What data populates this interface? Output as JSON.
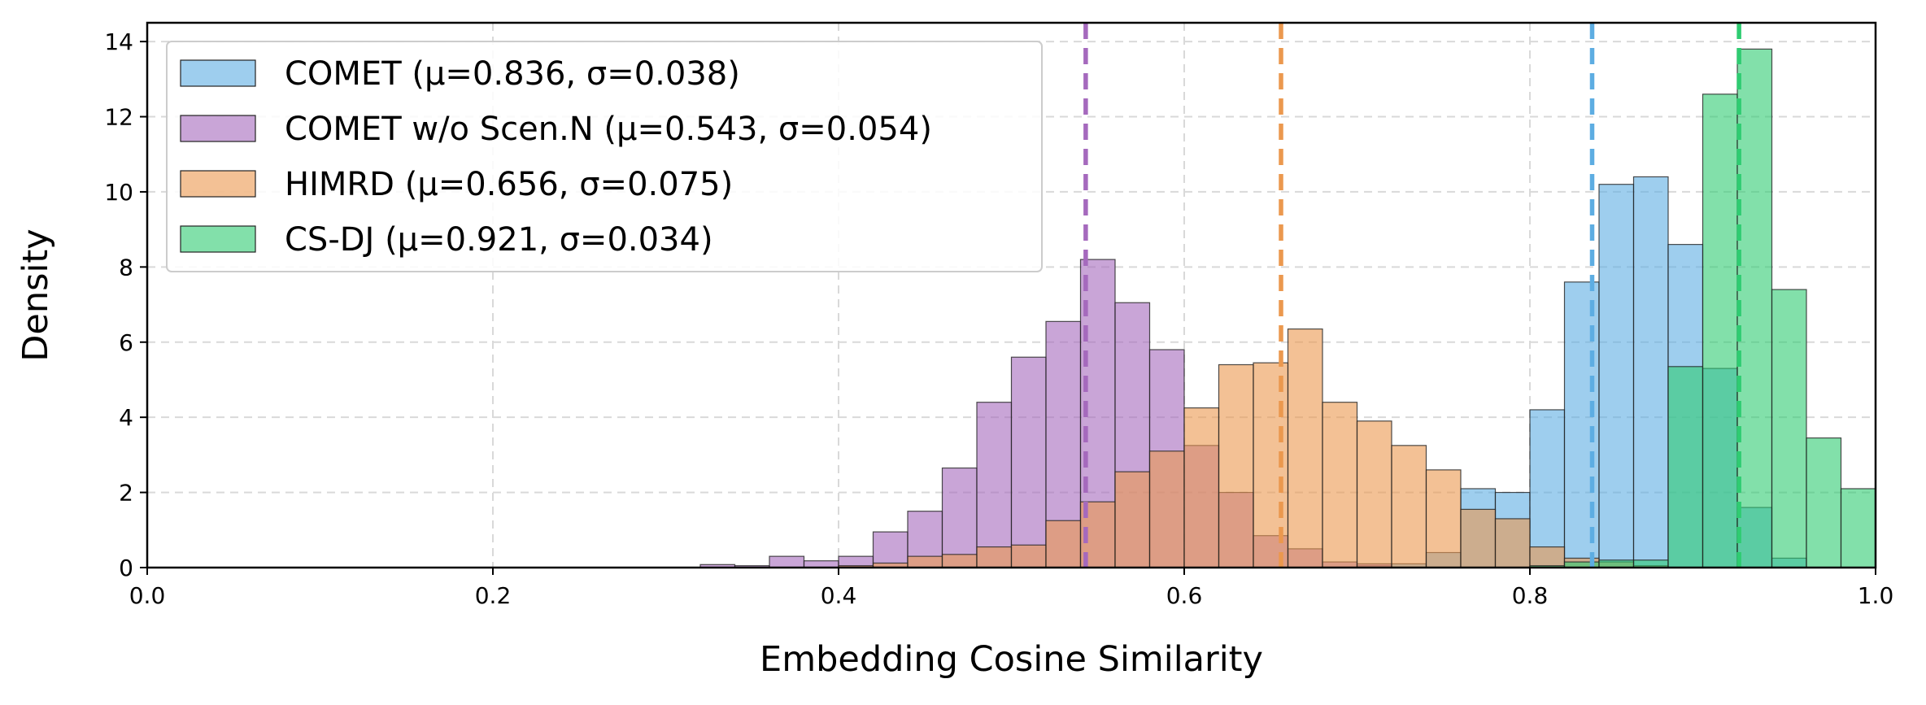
{
  "chart_data": {
    "type": "histogram",
    "xlabel": "Embedding Cosine Similarity",
    "ylabel": "Density",
    "xlim": [
      0.0,
      1.0
    ],
    "ylim": [
      0,
      14.5
    ],
    "x_ticks": [
      "0.0",
      "0.2",
      "0.4",
      "0.6",
      "0.8",
      "1.0"
    ],
    "y_ticks": [
      "0",
      "2",
      "4",
      "6",
      "8",
      "10",
      "12",
      "14"
    ],
    "grid": true,
    "legend_position": "top-left",
    "bin_width": 0.02,
    "series": [
      {
        "name": "COMET",
        "legend": "COMET (μ=0.836, σ=0.038)",
        "mean": 0.836,
        "color": "#5DADE2",
        "bins": [
          {
            "x": 0.7,
            "h": 0.05
          },
          {
            "x": 0.72,
            "h": 0.1
          },
          {
            "x": 0.74,
            "h": 0.4
          },
          {
            "x": 0.76,
            "h": 2.1
          },
          {
            "x": 0.78,
            "h": 2.0
          },
          {
            "x": 0.8,
            "h": 4.2
          },
          {
            "x": 0.82,
            "h": 7.6
          },
          {
            "x": 0.84,
            "h": 10.2
          },
          {
            "x": 0.86,
            "h": 10.4
          },
          {
            "x": 0.88,
            "h": 8.6
          },
          {
            "x": 0.9,
            "h": 5.3
          },
          {
            "x": 0.92,
            "h": 1.6
          },
          {
            "x": 0.94,
            "h": 0.25
          }
        ]
      },
      {
        "name": "COMET w/o Scen.N",
        "legend": "COMET w/o Scen.N (μ=0.543, σ=0.054)",
        "mean": 0.543,
        "color": "#A569BD",
        "bins": [
          {
            "x": 0.32,
            "h": 0.08
          },
          {
            "x": 0.34,
            "h": 0.05
          },
          {
            "x": 0.36,
            "h": 0.3
          },
          {
            "x": 0.38,
            "h": 0.18
          },
          {
            "x": 0.4,
            "h": 0.3
          },
          {
            "x": 0.42,
            "h": 0.95
          },
          {
            "x": 0.44,
            "h": 1.5
          },
          {
            "x": 0.46,
            "h": 2.65
          },
          {
            "x": 0.48,
            "h": 4.4
          },
          {
            "x": 0.5,
            "h": 5.6
          },
          {
            "x": 0.52,
            "h": 6.55
          },
          {
            "x": 0.54,
            "h": 8.2
          },
          {
            "x": 0.56,
            "h": 7.05
          },
          {
            "x": 0.58,
            "h": 5.8
          },
          {
            "x": 0.6,
            "h": 3.25
          },
          {
            "x": 0.62,
            "h": 2.0
          },
          {
            "x": 0.64,
            "h": 0.85
          },
          {
            "x": 0.66,
            "h": 0.5
          },
          {
            "x": 0.68,
            "h": 0.15
          },
          {
            "x": 0.7,
            "h": 0.1
          }
        ]
      },
      {
        "name": "HIMRD",
        "legend": "HIMRD (μ=0.656, σ=0.075)",
        "mean": 0.656,
        "color": "#EB984E",
        "bins": [
          {
            "x": 0.4,
            "h": 0.05
          },
          {
            "x": 0.42,
            "h": 0.12
          },
          {
            "x": 0.44,
            "h": 0.3
          },
          {
            "x": 0.46,
            "h": 0.35
          },
          {
            "x": 0.48,
            "h": 0.55
          },
          {
            "x": 0.5,
            "h": 0.6
          },
          {
            "x": 0.52,
            "h": 1.25
          },
          {
            "x": 0.54,
            "h": 1.75
          },
          {
            "x": 0.56,
            "h": 2.55
          },
          {
            "x": 0.58,
            "h": 3.1
          },
          {
            "x": 0.6,
            "h": 4.25
          },
          {
            "x": 0.62,
            "h": 5.4
          },
          {
            "x": 0.64,
            "h": 5.45
          },
          {
            "x": 0.66,
            "h": 6.35
          },
          {
            "x": 0.68,
            "h": 4.4
          },
          {
            "x": 0.7,
            "h": 3.9
          },
          {
            "x": 0.72,
            "h": 3.25
          },
          {
            "x": 0.74,
            "h": 2.6
          },
          {
            "x": 0.76,
            "h": 1.55
          },
          {
            "x": 0.78,
            "h": 1.3
          },
          {
            "x": 0.8,
            "h": 0.55
          },
          {
            "x": 0.82,
            "h": 0.25
          },
          {
            "x": 0.84,
            "h": 0.15
          },
          {
            "x": 0.86,
            "h": 0.05
          }
        ]
      },
      {
        "name": "CS-DJ",
        "legend": "CS-DJ (μ=0.921, σ=0.034)",
        "mean": 0.921,
        "color": "#2ECC71",
        "bins": [
          {
            "x": 0.8,
            "h": 0.05
          },
          {
            "x": 0.82,
            "h": 0.15
          },
          {
            "x": 0.84,
            "h": 0.2
          },
          {
            "x": 0.86,
            "h": 0.2
          },
          {
            "x": 0.88,
            "h": 5.35
          },
          {
            "x": 0.9,
            "h": 12.6
          },
          {
            "x": 0.92,
            "h": 13.8
          },
          {
            "x": 0.94,
            "h": 7.4
          },
          {
            "x": 0.96,
            "h": 3.45
          },
          {
            "x": 0.98,
            "h": 2.1
          }
        ]
      }
    ]
  }
}
